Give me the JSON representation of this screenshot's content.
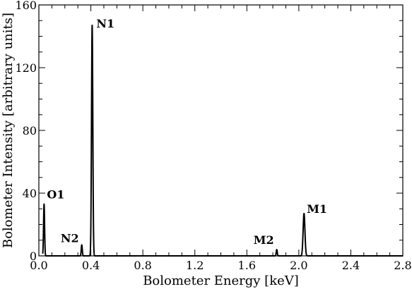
{
  "chart_data": {
    "type": "line",
    "xlabel": "Bolometer Energy [keV]",
    "ylabel": "Bolometer Intensity [arbitrary units]",
    "xlim": [
      0.0,
      2.8
    ],
    "ylim": [
      0,
      160
    ],
    "x_ticks": [
      0.0,
      0.4,
      0.8,
      1.2,
      1.6,
      2.0,
      2.4,
      2.8
    ],
    "x_tick_labels": [
      "0.0",
      "0.4",
      "0.8",
      "1.2",
      "1.6",
      "2.0",
      "2.4",
      "2.8"
    ],
    "y_ticks": [
      0,
      40,
      80,
      120,
      160
    ],
    "y_tick_labels": [
      "0",
      "40",
      "80",
      "120",
      "160"
    ],
    "grid": false,
    "series": [
      {
        "color": "#000000",
        "peaks": [
          {
            "x": 0.04,
            "y": 33,
            "label": "O1"
          },
          {
            "x": 0.33,
            "y": 7,
            "label": "N2"
          },
          {
            "x": 0.41,
            "y": 147,
            "label": "N1"
          },
          {
            "x": 1.83,
            "y": 4,
            "label": "M2"
          },
          {
            "x": 2.04,
            "y": 27,
            "label": "M1"
          }
        ]
      }
    ]
  }
}
